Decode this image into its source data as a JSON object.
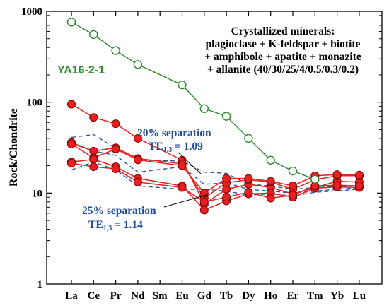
{
  "chart_data": {
    "type": "line",
    "yscale": "log",
    "ylim": [
      1,
      1000
    ],
    "ylabel": "Rock/Chondrite",
    "xlabel": "",
    "categories": [
      "La",
      "Ce",
      "Pr",
      "Nd",
      "Sm",
      "Eu",
      "Gd",
      "Tb",
      "Dy",
      "Ho",
      "Er",
      "Tm",
      "Yb",
      "Lu"
    ],
    "y_tick_labels": [
      "1",
      "10",
      "100",
      "1000"
    ],
    "annotation": {
      "title": "Crystallized minerals:",
      "line1": "plagioclase + K-feldspar + biotite",
      "line2": "+ amphibole + apatite + monazite",
      "line3": "+ allanite (40/30/25/4/0.5/0.3/0.2)"
    },
    "separation_20": {
      "label": "20% separation",
      "te_prefix": "TE",
      "te_sub": "1,3",
      "te_value": " = 1.09"
    },
    "separation_25": {
      "label": "25% separation",
      "te_prefix": "TE",
      "te_sub": "1,3",
      "te_value": " = 1.14"
    },
    "series": [
      {
        "name": "YA16-2-1",
        "style": "green-open",
        "color": "#2a8a2a",
        "values": [
          760,
          555,
          370,
          260,
          null,
          155,
          85,
          70,
          40,
          23,
          17.5,
          14.2,
          null,
          null
        ]
      },
      {
        "style": "red",
        "color": "#e82020",
        "values": [
          95,
          68,
          58,
          40,
          null,
          23,
          7.6,
          11,
          12.5,
          11.5,
          9.8,
          11.5,
          13.5,
          13.2
        ]
      },
      {
        "style": "red",
        "color": "#e82020",
        "values": [
          36,
          29,
          31.5,
          24,
          null,
          21,
          8.8,
          13,
          14,
          13.2,
          11,
          14,
          15.5,
          15.5
        ]
      },
      {
        "style": "red",
        "color": "#e82020",
        "values": [
          34.5,
          24.5,
          30.5,
          23.2,
          null,
          20,
          10,
          14.5,
          14.5,
          13.5,
          12,
          15.5,
          16,
          15.8
        ]
      },
      {
        "style": "red",
        "color": "#e82020",
        "values": [
          22,
          23.5,
          19.5,
          14.5,
          null,
          12,
          6.5,
          8.2,
          9.8,
          10,
          9,
          11.3,
          11.7,
          11.5
        ]
      },
      {
        "style": "red",
        "color": "#e82020",
        "values": [
          21.3,
          19.5,
          18.5,
          13.2,
          null,
          11.5,
          8,
          9,
          10.2,
          8.8,
          9.5,
          12,
          12.2,
          12
        ]
      },
      {
        "style": "blue-dashed",
        "color": "#1f4e9c",
        "values": [
          41,
          44,
          31,
          23,
          null,
          22.5,
          17,
          16.5,
          12.5,
          12,
          11,
          11.5,
          11.8,
          12
        ]
      },
      {
        "style": "blue-dashed",
        "color": "#1f4e9c",
        "values": [
          35,
          29,
          26,
          17,
          null,
          19.5,
          12.5,
          13,
          11,
          10.5,
          10,
          10.5,
          11,
          11.5
        ]
      },
      {
        "style": "blue-dashed",
        "color": "#1f4e9c",
        "values": [
          18,
          22,
          18,
          12,
          null,
          11,
          11,
          10.5,
          9.5,
          9.8,
          9.3,
          10.2,
          10.6,
          11
        ]
      }
    ]
  }
}
